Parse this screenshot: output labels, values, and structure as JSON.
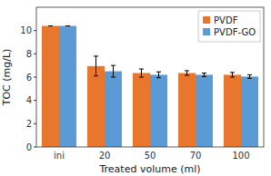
{
  "chart_data": {
    "type": "bar",
    "xlabel": "Treated volume (ml)",
    "ylabel": "TOC (mg/L)",
    "categories": [
      "ini",
      "20",
      "50",
      "70",
      "100"
    ],
    "series": [
      {
        "name": "PVDF",
        "color": "#E8762C",
        "values": [
          10.4,
          6.95,
          6.35,
          6.35,
          6.2
        ],
        "errors": [
          0.0,
          0.85,
          0.35,
          0.2,
          0.2
        ]
      },
      {
        "name": "PVDF-GO",
        "color": "#5B9BD5",
        "values": [
          10.4,
          6.5,
          6.2,
          6.2,
          6.05
        ],
        "errors": [
          0.0,
          0.5,
          0.25,
          0.15,
          0.15
        ]
      }
    ],
    "ylim": [
      0,
      12
    ],
    "yticks": [
      0,
      2,
      4,
      6,
      8,
      10
    ],
    "grid": false,
    "legend": "upper right"
  }
}
